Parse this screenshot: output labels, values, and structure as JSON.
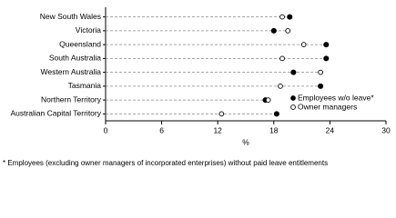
{
  "chart_data": {
    "type": "dot",
    "categories": [
      "New South Wales",
      "Victoria",
      "Queensland",
      "South Australia",
      "Western Australia",
      "Tasmania",
      "Northern Territory",
      "Australian Capital Territory"
    ],
    "series": [
      {
        "name": "Employees w/o leave*",
        "color": "#000000",
        "marker": "filled",
        "values": [
          19.7,
          18.0,
          23.6,
          23.6,
          20.1,
          23.0,
          17.1,
          18.3
        ]
      },
      {
        "name": "Owner managers",
        "color": "#000000",
        "marker": "open",
        "values": [
          18.9,
          19.5,
          21.2,
          18.9,
          23.0,
          18.7,
          17.4,
          12.4
        ]
      }
    ],
    "xlim": [
      0,
      30
    ],
    "xticks": [
      0,
      6,
      12,
      18,
      24,
      30
    ],
    "xlabel": "%",
    "legend": "lower right",
    "footnote": "* Employees (excluding owner managers of incorporated enterprises) without paid leave entitlements"
  }
}
